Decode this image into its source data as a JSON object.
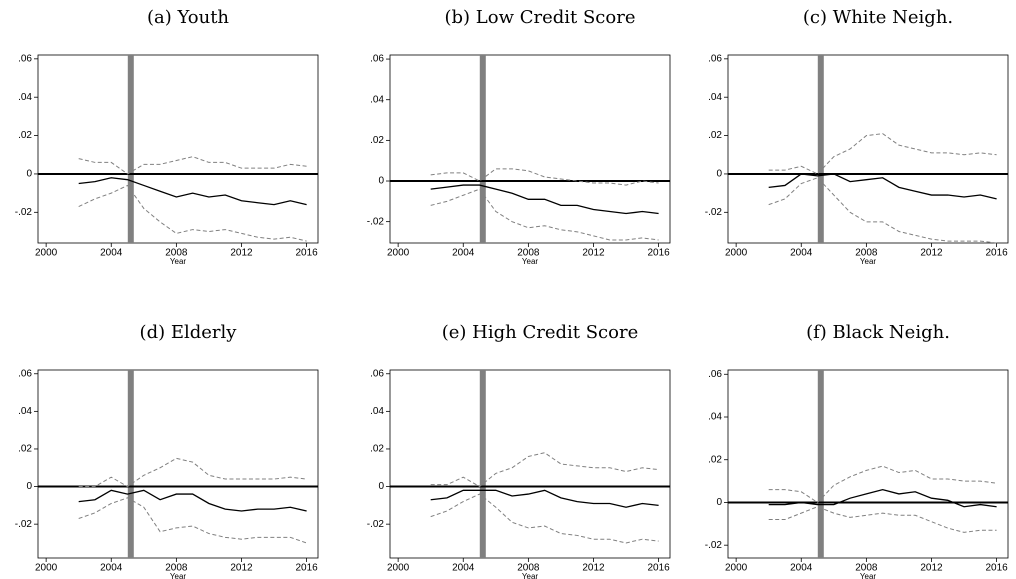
{
  "chart_data": [
    {
      "type": "line",
      "title": "(a) Youth",
      "xlabel": "Year",
      "x": [
        2002,
        2003,
        2004,
        2005,
        2006,
        2007,
        2008,
        2009,
        2010,
        2011,
        2012,
        2013,
        2014,
        2015,
        2016
      ],
      "series": [
        {
          "color": "#000000",
          "dashed": false,
          "values": [
            -0.005,
            -0.004,
            -0.002,
            -0.003,
            -0.006,
            -0.009,
            -0.012,
            -0.01,
            -0.012,
            -0.011,
            -0.014,
            -0.015,
            -0.016,
            -0.014,
            -0.016
          ]
        },
        {
          "color": "#808080",
          "dashed": true,
          "values": [
            0.008,
            0.006,
            0.006,
            0.0,
            0.005,
            0.005,
            0.007,
            0.009,
            0.006,
            0.006,
            0.003,
            0.003,
            0.003,
            0.005,
            0.004
          ]
        },
        {
          "color": "#808080",
          "dashed": true,
          "values": [
            -0.017,
            -0.013,
            -0.01,
            -0.006,
            -0.018,
            -0.025,
            -0.031,
            -0.029,
            -0.03,
            -0.029,
            -0.031,
            -0.033,
            -0.034,
            -0.033,
            -0.035
          ]
        }
      ],
      "xlim": [
        1999.5,
        2016.7
      ],
      "xticks": [
        2000,
        2004,
        2008,
        2012,
        2016
      ],
      "ylim": [
        -0.036,
        0.062
      ],
      "yticks": [
        {
          "value": -0.02,
          "label": "-.02"
        },
        0,
        {
          "value": 0.02,
          "label": ".02"
        },
        {
          "value": 0.04,
          "label": ".04"
        },
        {
          "value": 0.06,
          "label": ".06"
        }
      ],
      "hline": 0,
      "vline": 2005.2,
      "vline_color": "#808080"
    },
    {
      "type": "line",
      "title": "(b) Low Credit Score",
      "xlabel": "Year",
      "x": [
        2002,
        2003,
        2004,
        2005,
        2006,
        2007,
        2008,
        2009,
        2010,
        2011,
        2012,
        2013,
        2014,
        2015,
        2016
      ],
      "series": [
        {
          "color": "#000000",
          "dashed": false,
          "values": [
            -0.004,
            -0.003,
            -0.002,
            -0.002,
            -0.004,
            -0.006,
            -0.009,
            -0.009,
            -0.012,
            -0.012,
            -0.014,
            -0.015,
            -0.016,
            -0.015,
            -0.016
          ]
        },
        {
          "color": "#808080",
          "dashed": true,
          "values": [
            0.003,
            0.004,
            0.004,
            0.0,
            0.006,
            0.006,
            0.005,
            0.002,
            0.001,
            0.0,
            -0.001,
            -0.001,
            -0.002,
            0.0,
            -0.001
          ]
        },
        {
          "color": "#808080",
          "dashed": true,
          "values": [
            -0.012,
            -0.01,
            -0.007,
            -0.004,
            -0.015,
            -0.02,
            -0.023,
            -0.022,
            -0.024,
            -0.025,
            -0.027,
            -0.029,
            -0.029,
            -0.028,
            -0.029
          ]
        }
      ],
      "xlim": [
        1999.5,
        2016.7
      ],
      "xticks": [
        2000,
        2004,
        2008,
        2012,
        2016
      ],
      "ylim": [
        -0.0305,
        0.062
      ],
      "yticks": [
        {
          "value": -0.02,
          "label": "-.02"
        },
        0,
        {
          "value": 0.02,
          "label": ".02"
        },
        {
          "value": 0.04,
          "label": ".04"
        },
        {
          "value": 0.06,
          "label": ".06"
        }
      ],
      "hline": 0,
      "vline": 2005.2,
      "vline_color": "#808080"
    },
    {
      "type": "line",
      "title": "(c) White Neigh.",
      "xlabel": "Year",
      "x": [
        2002,
        2003,
        2004,
        2005,
        2006,
        2007,
        2008,
        2009,
        2010,
        2011,
        2012,
        2013,
        2014,
        2015,
        2016
      ],
      "series": [
        {
          "color": "#000000",
          "dashed": false,
          "values": [
            -0.007,
            -0.006,
            0.0,
            -0.001,
            0.0,
            -0.004,
            -0.003,
            -0.002,
            -0.007,
            -0.009,
            -0.011,
            -0.011,
            -0.012,
            -0.011,
            -0.013
          ]
        },
        {
          "color": "#808080",
          "dashed": true,
          "values": [
            0.002,
            0.002,
            0.004,
            0.0,
            0.009,
            0.013,
            0.02,
            0.021,
            0.015,
            0.013,
            0.011,
            0.011,
            0.01,
            0.011,
            0.01
          ]
        },
        {
          "color": "#808080",
          "dashed": true,
          "values": [
            -0.016,
            -0.013,
            -0.005,
            -0.002,
            -0.011,
            -0.02,
            -0.025,
            -0.025,
            -0.03,
            -0.032,
            -0.034,
            -0.035,
            -0.035,
            -0.035,
            -0.036
          ]
        }
      ],
      "xlim": [
        1999.5,
        2016.7
      ],
      "xticks": [
        2000,
        2004,
        2008,
        2012,
        2016
      ],
      "ylim": [
        -0.036,
        0.062
      ],
      "yticks": [
        {
          "value": -0.02,
          "label": "-.02"
        },
        0,
        {
          "value": 0.02,
          "label": ".02"
        },
        {
          "value": 0.04,
          "label": ".04"
        },
        {
          "value": 0.06,
          "label": ".06"
        }
      ],
      "hline": 0,
      "vline": 2005.2,
      "vline_color": "#808080"
    },
    {
      "type": "line",
      "title": "(d) Elderly",
      "xlabel": "Year",
      "x": [
        2002,
        2003,
        2004,
        2005,
        2006,
        2007,
        2008,
        2009,
        2010,
        2011,
        2012,
        2013,
        2014,
        2015,
        2016
      ],
      "series": [
        {
          "color": "#000000",
          "dashed": false,
          "values": [
            -0.008,
            -0.007,
            -0.002,
            -0.004,
            -0.002,
            -0.007,
            -0.004,
            -0.004,
            -0.009,
            -0.012,
            -0.013,
            -0.012,
            -0.012,
            -0.011,
            -0.013
          ]
        },
        {
          "color": "#808080",
          "dashed": true,
          "values": [
            0.0,
            0.0,
            0.005,
            0.0,
            0.006,
            0.01,
            0.015,
            0.013,
            0.006,
            0.004,
            0.004,
            0.004,
            0.004,
            0.005,
            0.004
          ]
        },
        {
          "color": "#808080",
          "dashed": true,
          "values": [
            -0.017,
            -0.014,
            -0.009,
            -0.006,
            -0.011,
            -0.024,
            -0.022,
            -0.021,
            -0.025,
            -0.027,
            -0.028,
            -0.027,
            -0.027,
            -0.027,
            -0.03
          ]
        }
      ],
      "xlim": [
        1999.5,
        2016.7
      ],
      "xticks": [
        2000,
        2004,
        2008,
        2012,
        2016
      ],
      "ylim": [
        -0.038,
        0.062
      ],
      "yticks": [
        {
          "value": -0.02,
          "label": "-.02"
        },
        0,
        {
          "value": 0.02,
          "label": ".02"
        },
        {
          "value": 0.04,
          "label": ".04"
        },
        {
          "value": 0.06,
          "label": ".06"
        }
      ],
      "hline": 0,
      "vline": 2005.2,
      "vline_color": "#808080"
    },
    {
      "type": "line",
      "title": "(e) High Credit Score",
      "xlabel": "Year",
      "x": [
        2002,
        2003,
        2004,
        2005,
        2006,
        2007,
        2008,
        2009,
        2010,
        2011,
        2012,
        2013,
        2014,
        2015,
        2016
      ],
      "series": [
        {
          "color": "#000000",
          "dashed": false,
          "values": [
            -0.007,
            -0.006,
            -0.002,
            -0.002,
            -0.002,
            -0.005,
            -0.004,
            -0.002,
            -0.006,
            -0.008,
            -0.009,
            -0.009,
            -0.011,
            -0.009,
            -0.01
          ]
        },
        {
          "color": "#808080",
          "dashed": true,
          "values": [
            0.001,
            0.001,
            0.005,
            0.0,
            0.007,
            0.01,
            0.016,
            0.018,
            0.012,
            0.011,
            0.01,
            0.01,
            0.008,
            0.01,
            0.009
          ]
        },
        {
          "color": "#808080",
          "dashed": true,
          "values": [
            -0.016,
            -0.013,
            -0.008,
            -0.004,
            -0.011,
            -0.019,
            -0.022,
            -0.021,
            -0.025,
            -0.026,
            -0.028,
            -0.028,
            -0.03,
            -0.028,
            -0.029
          ]
        }
      ],
      "xlim": [
        1999.5,
        2016.7
      ],
      "xticks": [
        2000,
        2004,
        2008,
        2012,
        2016
      ],
      "ylim": [
        -0.038,
        0.062
      ],
      "yticks": [
        {
          "value": -0.02,
          "label": "-.02"
        },
        0,
        {
          "value": 0.02,
          "label": ".02"
        },
        {
          "value": 0.04,
          "label": ".04"
        },
        {
          "value": 0.06,
          "label": ".06"
        }
      ],
      "hline": 0,
      "vline": 2005.2,
      "vline_color": "#808080"
    },
    {
      "type": "line",
      "title": "(f) Black Neigh.",
      "xlabel": "Year",
      "x": [
        2002,
        2003,
        2004,
        2005,
        2006,
        2007,
        2008,
        2009,
        2010,
        2011,
        2012,
        2013,
        2014,
        2015,
        2016
      ],
      "series": [
        {
          "color": "#000000",
          "dashed": false,
          "values": [
            -0.001,
            -0.001,
            0.0,
            -0.001,
            -0.001,
            0.002,
            0.004,
            0.006,
            0.004,
            0.005,
            0.002,
            0.001,
            -0.002,
            -0.001,
            -0.002
          ]
        },
        {
          "color": "#808080",
          "dashed": true,
          "values": [
            0.006,
            0.006,
            0.005,
            0.0,
            0.008,
            0.012,
            0.015,
            0.017,
            0.014,
            0.015,
            0.011,
            0.011,
            0.01,
            0.01,
            0.009
          ]
        },
        {
          "color": "#808080",
          "dashed": true,
          "values": [
            -0.008,
            -0.008,
            -0.005,
            -0.002,
            -0.005,
            -0.007,
            -0.006,
            -0.005,
            -0.006,
            -0.006,
            -0.009,
            -0.012,
            -0.014,
            -0.013,
            -0.013
          ]
        }
      ],
      "xlim": [
        1999.5,
        2016.7
      ],
      "xticks": [
        2000,
        2004,
        2008,
        2012,
        2016
      ],
      "ylim": [
        -0.026,
        0.062
      ],
      "yticks": [
        {
          "value": -0.02,
          "label": "-.02"
        },
        0,
        {
          "value": 0.02,
          "label": ".02"
        },
        {
          "value": 0.04,
          "label": ".04"
        },
        {
          "value": 0.06,
          "label": ".06"
        }
      ],
      "hline": 0,
      "vline": 2005.2,
      "vline_color": "#808080"
    }
  ]
}
